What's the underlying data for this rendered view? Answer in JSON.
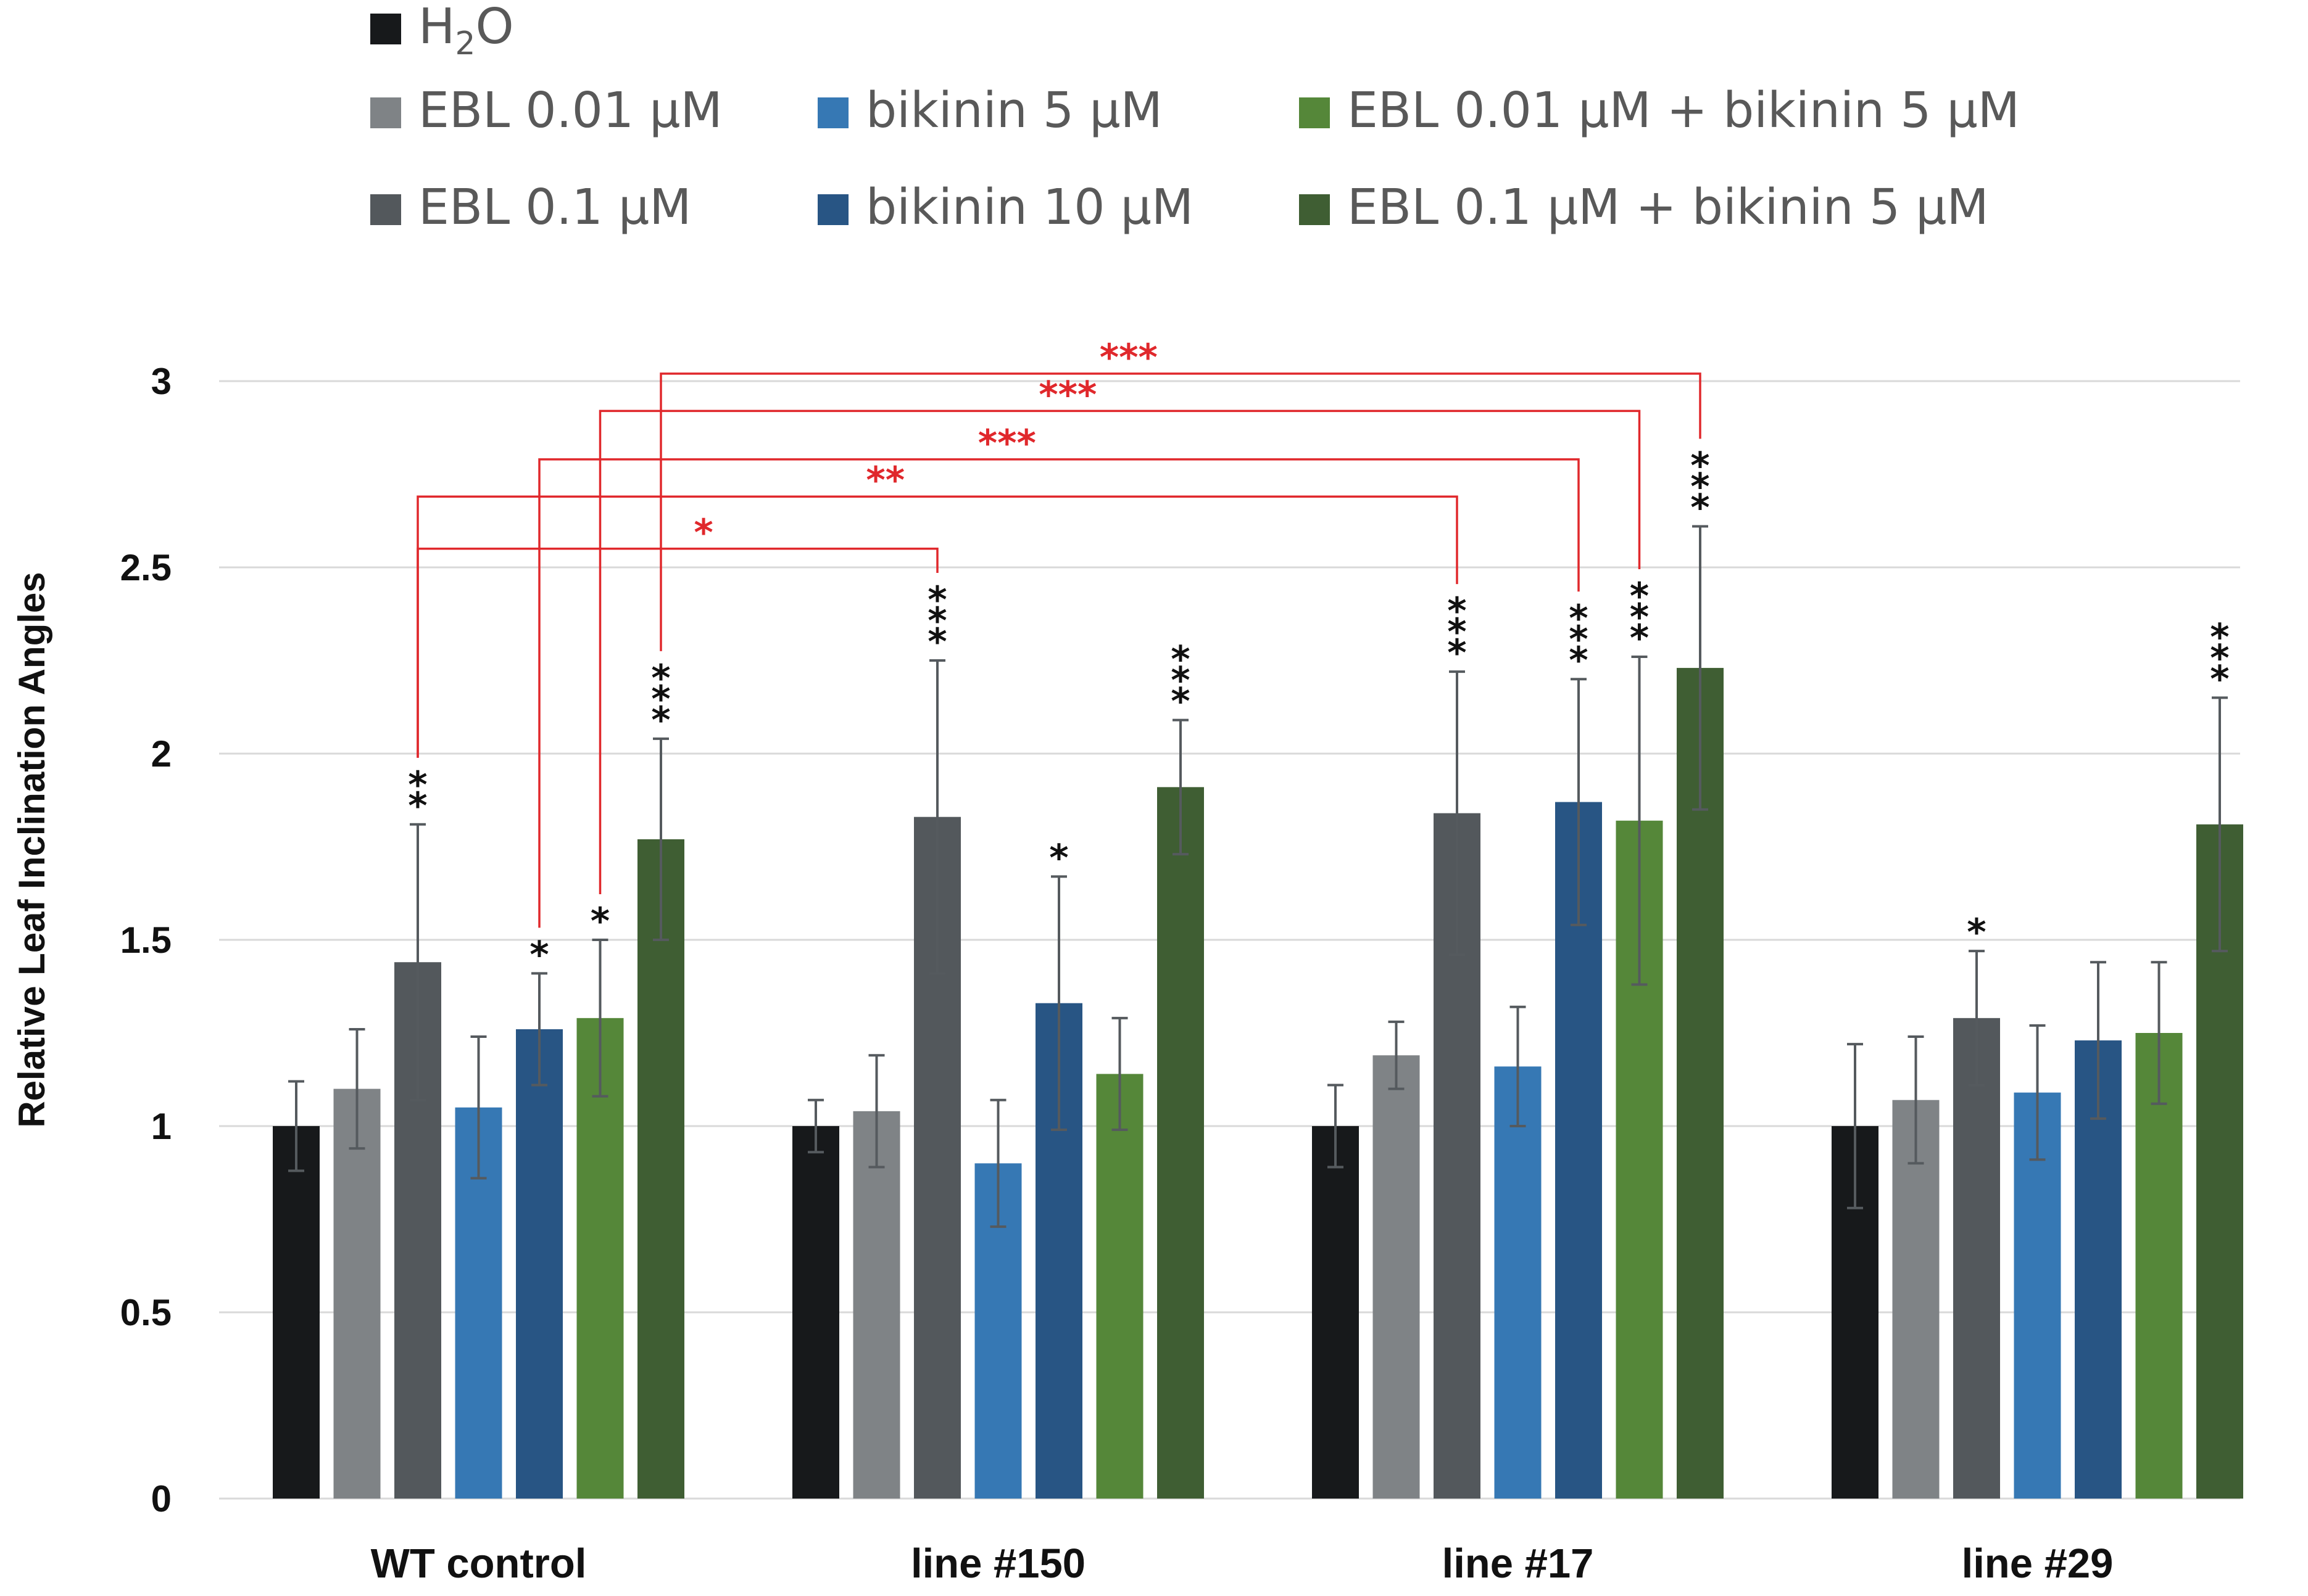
{
  "chart_data": {
    "type": "bar",
    "title": "",
    "xlabel": "",
    "ylabel": "Relative Leaf Inclination Angles",
    "ylim": [
      0,
      3
    ],
    "yticks": [
      "0",
      "0.5",
      "1",
      "1.5",
      "2",
      "2.5",
      "3"
    ],
    "grid": true,
    "legend_position": "top",
    "categories": [
      "WT control",
      "line #150",
      "line #17",
      "line #29"
    ],
    "series": [
      {
        "name": "H2O",
        "legend_main": "H",
        "legend_sub": "2",
        "legend_rest": "O",
        "color": "#17191b",
        "values": [
          1.0,
          1.0,
          1.0,
          1.0
        ],
        "errors": [
          0.12,
          0.07,
          0.11,
          0.22
        ],
        "sig": [
          "",
          "",
          "",
          ""
        ]
      },
      {
        "name": "EBL 0.01 µM",
        "color": "#7f8386",
        "values": [
          1.1,
          1.04,
          1.19,
          1.07
        ],
        "errors": [
          0.16,
          0.15,
          0.09,
          0.17
        ],
        "sig": [
          "",
          "",
          "",
          ""
        ]
      },
      {
        "name": "EBL 0.1 µM",
        "color": "#53585c",
        "values": [
          1.44,
          1.83,
          1.84,
          1.29
        ],
        "errors": [
          0.37,
          0.42,
          0.38,
          0.18
        ],
        "sig": [
          "**",
          "***",
          "***",
          "*"
        ]
      },
      {
        "name": "bikinin 5 µM",
        "color": "#3678b4",
        "values": [
          1.05,
          0.9,
          1.16,
          1.09
        ],
        "errors": [
          0.19,
          0.17,
          0.16,
          0.18
        ],
        "sig": [
          "",
          "",
          "",
          ""
        ]
      },
      {
        "name": "bikinin 10 µM",
        "color": "#285584",
        "values": [
          1.26,
          1.33,
          1.87,
          1.23
        ],
        "errors": [
          0.15,
          0.34,
          0.33,
          0.21
        ],
        "sig": [
          "*",
          "*",
          "***",
          ""
        ]
      },
      {
        "name": "EBL 0.01 µM + bikinin 5 µM",
        "color": "#558739",
        "values": [
          1.29,
          1.14,
          1.82,
          1.25
        ],
        "errors": [
          0.21,
          0.15,
          0.44,
          0.19
        ],
        "sig": [
          "*",
          "",
          "***",
          ""
        ]
      },
      {
        "name": "EBL 0.1 µM + bikinin 5 µM",
        "color": "#3f5e33",
        "values": [
          1.77,
          1.91,
          2.23,
          1.81
        ],
        "errors": [
          0.27,
          0.18,
          0.38,
          0.34
        ],
        "sig": [
          "***",
          "***",
          "***",
          "***"
        ]
      }
    ],
    "comparisons": [
      {
        "from": [
          0,
          2
        ],
        "to": [
          1,
          2
        ],
        "label": "*",
        "level": 2.55
      },
      {
        "from": [
          0,
          2
        ],
        "to": [
          2,
          2
        ],
        "label": "**",
        "level": 2.69
      },
      {
        "from": [
          0,
          4
        ],
        "to": [
          2,
          4
        ],
        "label": "***",
        "level": 2.79
      },
      {
        "from": [
          0,
          5
        ],
        "to": [
          2,
          5
        ],
        "label": "***",
        "level": 2.92
      },
      {
        "from": [
          0,
          6
        ],
        "to": [
          2,
          6
        ],
        "label": "***",
        "level": 3.02
      }
    ],
    "comparison_color": "#e0282c"
  }
}
